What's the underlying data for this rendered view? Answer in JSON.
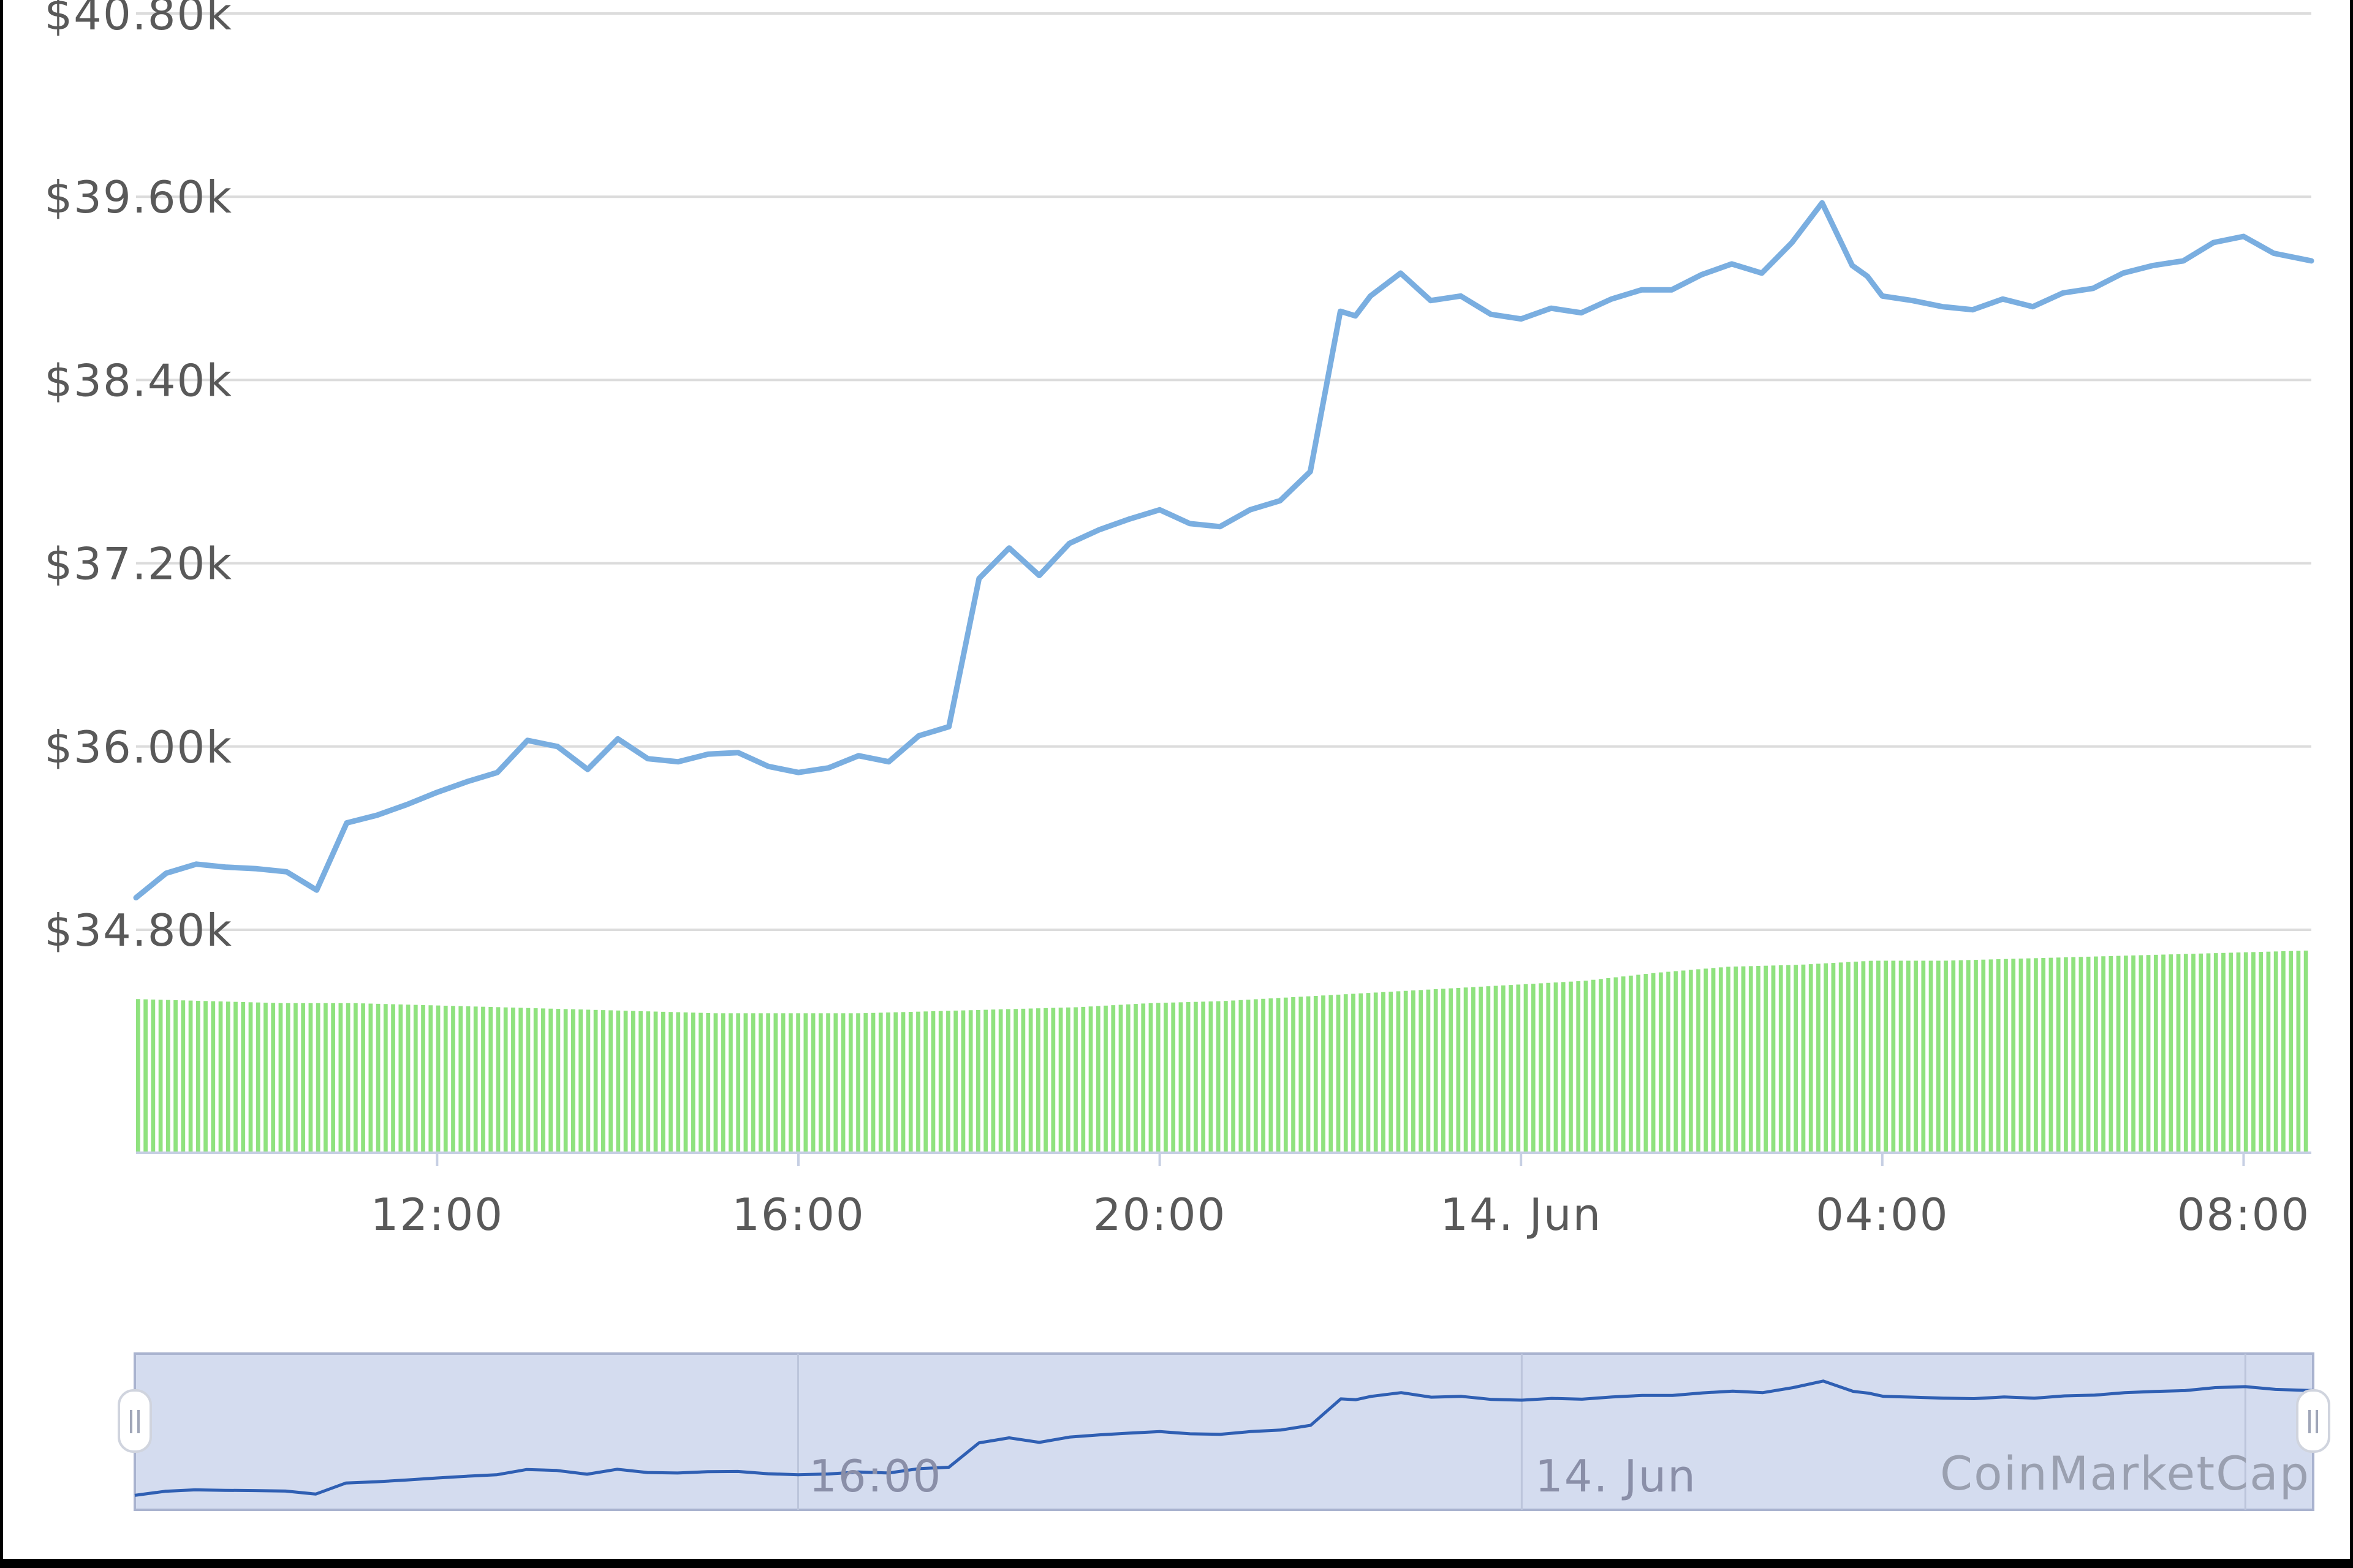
{
  "chart_data": {
    "type": "line",
    "title": "",
    "xlabel": "",
    "ylabel": "",
    "y_unit": "USD",
    "ylim": [
      34800,
      40800
    ],
    "yticks": [
      34800,
      36000,
      37200,
      38400,
      39600,
      40800
    ],
    "ytick_labels": [
      "$34.80k",
      "$36.00k",
      "$37.20k",
      "$38.40k",
      "$39.60k",
      "$40.80k"
    ],
    "xlim": [
      "13 Jun 08:40",
      "14 Jun 08:45"
    ],
    "xticks": [
      "13 Jun 12:00",
      "13 Jun 16:00",
      "13 Jun 20:00",
      "14 Jun 00:00",
      "14 Jun 04:00",
      "14 Jun 08:00"
    ],
    "xtick_labels": [
      "12:00",
      "16:00",
      "20:00",
      "14. Jun",
      "04:00",
      "08:00"
    ],
    "grid": true,
    "line_color": "#7aaee0",
    "volume_color": "#8fe27e",
    "navigator_fill": "#d4dcef",
    "navigator_line": "#2f5fb3",
    "navigator_labels": [
      "16:00",
      "14. Jun"
    ],
    "credit": "CoinMarketCap",
    "x": [
      "13 Jun 08:40",
      "13 Jun 09:00",
      "13 Jun 09:20",
      "13 Jun 09:40",
      "13 Jun 10:00",
      "13 Jun 10:20",
      "13 Jun 10:40",
      "13 Jun 11:00",
      "13 Jun 11:20",
      "13 Jun 11:40",
      "13 Jun 12:00",
      "13 Jun 12:20",
      "13 Jun 12:40",
      "13 Jun 13:00",
      "13 Jun 13:20",
      "13 Jun 13:40",
      "13 Jun 14:00",
      "13 Jun 14:20",
      "13 Jun 14:40",
      "13 Jun 15:00",
      "13 Jun 15:20",
      "13 Jun 15:40",
      "13 Jun 16:00",
      "13 Jun 16:20",
      "13 Jun 16:40",
      "13 Jun 17:00",
      "13 Jun 17:20",
      "13 Jun 17:40",
      "13 Jun 18:00",
      "13 Jun 18:10",
      "13 Jun 18:20",
      "13 Jun 18:40",
      "13 Jun 19:00",
      "13 Jun 19:20",
      "13 Jun 19:40",
      "13 Jun 20:00",
      "13 Jun 20:20",
      "13 Jun 20:40",
      "13 Jun 21:00",
      "13 Jun 21:20",
      "13 Jun 21:40",
      "13 Jun 22:00",
      "13 Jun 22:10",
      "13 Jun 22:20",
      "13 Jun 22:40",
      "13 Jun 23:00",
      "13 Jun 23:20",
      "13 Jun 23:40",
      "14 Jun 00:00",
      "14 Jun 00:20",
      "14 Jun 00:40",
      "14 Jun 01:00",
      "14 Jun 01:20",
      "14 Jun 01:40",
      "14 Jun 02:00",
      "14 Jun 02:20",
      "14 Jun 02:40",
      "14 Jun 03:00",
      "14 Jun 03:20",
      "14 Jun 03:40",
      "14 Jun 03:50",
      "14 Jun 04:00",
      "14 Jun 04:20",
      "14 Jun 04:40",
      "14 Jun 05:00",
      "14 Jun 05:20",
      "14 Jun 05:40",
      "14 Jun 06:00",
      "14 Jun 06:20",
      "14 Jun 06:40",
      "14 Jun 07:00",
      "14 Jun 07:20",
      "14 Jun 07:40",
      "14 Jun 08:00",
      "14 Jun 08:20",
      "14 Jun 08:45"
    ],
    "series": [
      {
        "values": [
          35010,
          35170,
          35230,
          35210,
          35200,
          35180,
          35060,
          35500,
          35550,
          35620,
          35700,
          35770,
          35830,
          36040,
          36000,
          35850,
          36050,
          35920,
          35900,
          35950,
          35960,
          35870,
          35830,
          35860,
          35940,
          35900,
          36070,
          36130,
          37100,
          37200,
          37300,
          37120,
          37330,
          37420,
          37490,
          37550,
          37460,
          37440,
          37550,
          37610,
          37800,
          38850,
          38820,
          38950,
          39100,
          38920,
          38950,
          38830,
          38800,
          38870,
          38840,
          38930,
          38990,
          38990,
          39090,
          39160,
          39100,
          39300,
          39560,
          39150,
          39080,
          38950,
          38920,
          38880,
          38860,
          38930,
          38880,
          38970,
          39000,
          39100,
          39150,
          39180,
          39300,
          39340,
          39230,
          39180
        ]
      }
    ],
    "volume": {
      "unit": "relative",
      "values": [
        0.76,
        0.75,
        0.74,
        0.74,
        0.73,
        0.72,
        0.71,
        0.7,
        0.69,
        0.69,
        0.69,
        0.7,
        0.71,
        0.72,
        0.74,
        0.75,
        0.77,
        0.79,
        0.81,
        0.83,
        0.85,
        0.89,
        0.92,
        0.93,
        0.95,
        0.95,
        0.96,
        0.97,
        0.98,
        0.99,
        1.0
      ]
    }
  }
}
